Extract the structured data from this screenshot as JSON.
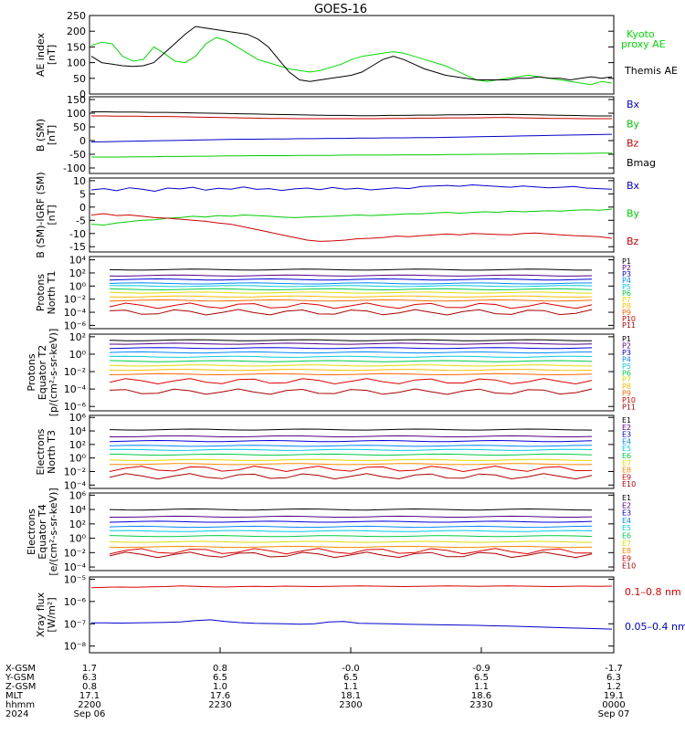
{
  "title": "GOES-16",
  "panels": [
    {
      "id": "ae",
      "ylabel": [
        "AE index",
        "[nT]"
      ],
      "ticks": [
        "250",
        "200",
        "150",
        "100",
        "50",
        "0"
      ],
      "ylim": [
        0,
        250
      ],
      "scale": "linear",
      "legend": [
        {
          "text": "Kyoto",
          "color": "#00dd00"
        },
        {
          "text": "proxy AE",
          "color": "#00dd00"
        },
        {
          "text": "Themis AE",
          "color": "#000000"
        }
      ],
      "series": [
        {
          "legend_ref": 0,
          "color": "#00dd00",
          "values": [
            155,
            165,
            160,
            120,
            105,
            110,
            150,
            130,
            105,
            100,
            120,
            160,
            180,
            170,
            150,
            130,
            110,
            100,
            90,
            80,
            75,
            70,
            75,
            85,
            95,
            110,
            120,
            125,
            130,
            135,
            130,
            120,
            110,
            100,
            90,
            75,
            60,
            45,
            40,
            45,
            50,
            55,
            60,
            55,
            50,
            45,
            40,
            35,
            30,
            40,
            35
          ]
        },
        {
          "legend_ref": 2,
          "color": "#000000",
          "values": [
            120,
            100,
            95,
            90,
            88,
            90,
            100,
            130,
            160,
            190,
            215,
            210,
            205,
            200,
            195,
            190,
            175,
            150,
            110,
            70,
            45,
            40,
            45,
            50,
            55,
            60,
            70,
            90,
            110,
            120,
            110,
            95,
            80,
            70,
            60,
            55,
            50,
            45,
            45,
            45,
            45,
            50,
            50,
            55,
            50,
            50,
            45,
            50,
            55,
            50,
            55
          ]
        }
      ]
    },
    {
      "id": "bsm",
      "ylabel": [
        "B (SM)",
        "[nT]"
      ],
      "ticks": [
        "150",
        "100",
        "50",
        "0",
        "-50",
        "-100"
      ],
      "ylim": [
        -120,
        160
      ],
      "scale": "linear",
      "legend": [
        {
          "text": "Bx",
          "color": "#0000cc"
        },
        {
          "text": "By",
          "color": "#00cc00"
        },
        {
          "text": "Bz",
          "color": "#cc0000"
        },
        {
          "text": "Bmag",
          "color": "#000000"
        }
      ],
      "series": [
        {
          "legend_ref": 3,
          "color": "#000000",
          "values": [
            105,
            105,
            104,
            104,
            103,
            103,
            102,
            101,
            100,
            99,
            98,
            97,
            96,
            95,
            94,
            93,
            92,
            92,
            91,
            91,
            92,
            92,
            93,
            93,
            94,
            94,
            95,
            95,
            96,
            95,
            94,
            93,
            92,
            91,
            90,
            90
          ]
        },
        {
          "legend_ref": 2,
          "color": "#cc0000",
          "values": [
            90,
            90,
            89,
            89,
            88,
            88,
            87,
            86,
            85,
            84,
            83,
            82,
            81,
            81,
            80,
            80,
            80,
            80,
            80,
            80,
            81,
            81,
            82,
            82,
            83,
            83,
            83,
            84,
            84,
            83,
            82,
            81,
            81,
            80,
            80,
            80
          ]
        },
        {
          "legend_ref": 0,
          "color": "#0000cc",
          "values": [
            -5,
            -4,
            -3,
            -2,
            -1,
            0,
            1,
            2,
            3,
            4,
            5,
            5,
            6,
            6,
            7,
            7,
            8,
            8,
            9,
            9,
            10,
            10,
            11,
            11,
            12,
            13,
            14,
            15,
            16,
            17,
            18,
            19,
            20,
            21,
            22,
            23
          ]
        },
        {
          "legend_ref": 1,
          "color": "#00cc00",
          "values": [
            -60,
            -60,
            -60,
            -59,
            -59,
            -58,
            -58,
            -57,
            -57,
            -56,
            -56,
            -55,
            -55,
            -55,
            -54,
            -54,
            -54,
            -53,
            -53,
            -53,
            -53,
            -52,
            -52,
            -52,
            -51,
            -51,
            -50,
            -50,
            -49,
            -49,
            -48,
            -48,
            -47,
            -47,
            -46,
            -46
          ]
        }
      ]
    },
    {
      "id": "bigrf",
      "ylabel": [
        "B (SM)-IGRF (SM)",
        "[nT]"
      ],
      "ticks": [
        "10",
        "5",
        "0",
        "-5",
        "-10",
        "-15"
      ],
      "ylim": [
        -17,
        11
      ],
      "scale": "linear",
      "legend": [
        {
          "text": "Bx",
          "color": "#0000cc"
        },
        {
          "text": "By",
          "color": "#00cc00"
        },
        {
          "text": "Bz",
          "color": "#cc0000"
        }
      ],
      "series": [
        {
          "legend_ref": 0,
          "color": "#0000cc",
          "values": [
            6.5,
            7.0,
            6.2,
            7.3,
            6.8,
            6.0,
            7.2,
            6.9,
            7.5,
            6.4,
            7.1,
            6.8,
            7.6,
            6.7,
            7.0,
            6.3,
            6.9,
            7.2,
            6.6,
            7.4,
            6.8,
            7.1,
            6.5,
            6.9,
            7.3,
            7.0,
            7.8,
            8.0,
            8.2,
            7.9,
            8.4,
            8.1,
            7.8,
            7.5,
            8.0,
            7.6,
            7.3,
            7.5,
            7.8,
            7.2,
            7.0,
            6.8
          ]
        },
        {
          "legend_ref": 1,
          "color": "#00cc00",
          "values": [
            -6.5,
            -6.8,
            -6.0,
            -5.5,
            -5.0,
            -4.8,
            -4.2,
            -4.0,
            -3.5,
            -3.8,
            -3.2,
            -3.5,
            -3.0,
            -3.2,
            -3.5,
            -3.8,
            -4.0,
            -3.8,
            -3.6,
            -3.5,
            -3.2,
            -3.0,
            -3.2,
            -3.0,
            -2.8,
            -2.5,
            -2.6,
            -2.2,
            -2.0,
            -2.3,
            -2.0,
            -1.8,
            -2.0,
            -1.5,
            -1.8,
            -1.6,
            -1.4,
            -1.5,
            -1.2,
            -1.0,
            -1.2,
            -0.8
          ]
        },
        {
          "legend_ref": 2,
          "color": "#cc0000",
          "values": [
            -3.0,
            -2.5,
            -3.2,
            -3.0,
            -3.5,
            -4.0,
            -4.2,
            -4.6,
            -5.0,
            -5.4,
            -6.0,
            -6.5,
            -7.5,
            -8.5,
            -9.5,
            -10.5,
            -11.5,
            -12.5,
            -13.0,
            -12.8,
            -12.5,
            -12.0,
            -11.8,
            -11.5,
            -11.0,
            -11.2,
            -10.8,
            -10.5,
            -10.2,
            -10.5,
            -10.0,
            -10.2,
            -10.4,
            -10.5,
            -10.0,
            -9.8,
            -10.2,
            -10.5,
            -10.8,
            -11.0,
            -11.2,
            -11.8
          ]
        }
      ]
    },
    {
      "id": "protons_t1",
      "ylabel": [
        "Protons",
        "North T1"
      ],
      "ticks": [
        "10⁴",
        "10²",
        "10⁰",
        "10⁻²",
        "10⁻⁴",
        "10⁻⁶"
      ],
      "ylim_log": [
        -6.5,
        4.5
      ],
      "scale": "log",
      "legend": [
        {
          "text": "P1",
          "color": "#000000"
        },
        {
          "text": "P2",
          "color": "#550088"
        },
        {
          "text": "P3",
          "color": "#0000dd"
        },
        {
          "text": "P4",
          "color": "#0088ff"
        },
        {
          "text": "P5",
          "color": "#00ccdd"
        },
        {
          "text": "P6",
          "color": "#00cc44"
        },
        {
          "text": "P7",
          "color": "#dddd00"
        },
        {
          "text": "P8",
          "color": "#ffbb00"
        },
        {
          "text": "P9",
          "color": "#ff6600"
        },
        {
          "text": "P10",
          "color": "#dd0000"
        },
        {
          "text": "P11",
          "color": "#aa0000"
        }
      ],
      "levels": [
        2.5,
        1.6,
        1.0,
        0.4,
        0.0,
        -0.5,
        -1.0,
        -1.6,
        -2.2,
        -3.0,
        -4.0
      ]
    },
    {
      "id": "protons_t2",
      "ylabel": [
        "Protons",
        "Equator T2",
        "[p/(cm²-s-sr-keV)]"
      ],
      "ticks": [
        "10²",
        "10⁰",
        "10⁻²",
        "10⁻⁴",
        "10⁻⁶"
      ],
      "ylim_log": [
        -6.5,
        2.3
      ],
      "scale": "log",
      "legend": [
        {
          "text": "P1",
          "color": "#000000"
        },
        {
          "text": "P2",
          "color": "#550088"
        },
        {
          "text": "P3",
          "color": "#0000dd"
        },
        {
          "text": "P4",
          "color": "#0088ff"
        },
        {
          "text": "P5",
          "color": "#00ccdd"
        },
        {
          "text": "P6",
          "color": "#00cc44"
        },
        {
          "text": "P7",
          "color": "#dddd00"
        },
        {
          "text": "P8",
          "color": "#ffbb00"
        },
        {
          "text": "P9",
          "color": "#ff6600"
        },
        {
          "text": "P10",
          "color": "#dd0000"
        },
        {
          "text": "P11",
          "color": "#aa0000"
        }
      ],
      "levels": [
        1.6,
        1.2,
        0.7,
        0.2,
        -0.3,
        -0.8,
        -1.3,
        -1.8,
        -2.3,
        -3.1,
        -4.3
      ]
    },
    {
      "id": "electrons_t3",
      "ylabel": [
        "Electrons",
        "North T3"
      ],
      "ticks": [
        "10⁶",
        "10⁴",
        "10²",
        "10⁰",
        "10⁻²",
        "10⁻⁴"
      ],
      "ylim_log": [
        -4.5,
        6.3
      ],
      "scale": "log",
      "legend": [
        {
          "text": "E1",
          "color": "#000000"
        },
        {
          "text": "E2",
          "color": "#550088"
        },
        {
          "text": "E3",
          "color": "#0000dd"
        },
        {
          "text": "E4",
          "color": "#0088ff"
        },
        {
          "text": "E5",
          "color": "#00ccdd"
        },
        {
          "text": "E6",
          "color": "#00cc44"
        },
        {
          "text": "E7",
          "color": "#dddd00"
        },
        {
          "text": "E8",
          "color": "#ff8800"
        },
        {
          "text": "E9",
          "color": "#dd0000"
        },
        {
          "text": "E10",
          "color": "#aa0000"
        }
      ],
      "levels": [
        4.2,
        3.2,
        2.5,
        1.8,
        1.2,
        0.5,
        -0.3,
        -0.9,
        -1.6,
        -2.7
      ]
    },
    {
      "id": "electrons_t4",
      "ylabel": [
        "Electrons",
        "Equator T4",
        "[e/(cm²-s-sr-keV)]"
      ],
      "ticks": [
        "10⁶",
        "10⁴",
        "10²",
        "10⁰",
        "10⁻²",
        "10⁻⁴"
      ],
      "ylim_log": [
        -4.5,
        6.3
      ],
      "scale": "log",
      "legend": [
        {
          "text": "E1",
          "color": "#000000"
        },
        {
          "text": "E2",
          "color": "#550088"
        },
        {
          "text": "E3",
          "color": "#0000dd"
        },
        {
          "text": "E4",
          "color": "#0088ff"
        },
        {
          "text": "E5",
          "color": "#00ccdd"
        },
        {
          "text": "E6",
          "color": "#00cc44"
        },
        {
          "text": "E7",
          "color": "#dddd00"
        },
        {
          "text": "E8",
          "color": "#ff8800"
        },
        {
          "text": "E9",
          "color": "#dd0000"
        },
        {
          "text": "E10",
          "color": "#aa0000"
        }
      ],
      "levels": [
        4.0,
        3.0,
        2.3,
        1.6,
        1.0,
        0.3,
        -0.5,
        -1.2,
        -1.8,
        -2.3
      ]
    },
    {
      "id": "xray",
      "ylabel": [
        "Xray flux",
        "[W/m²]"
      ],
      "ticks": [
        "10⁻⁵",
        "10⁻⁶",
        "10⁻⁷",
        "10⁻⁸"
      ],
      "ylim_log": [
        -8.3,
        -4.9
      ],
      "scale": "log",
      "legend": [
        {
          "text": "0.1–0.8 nm",
          "color": "#dd0000"
        },
        {
          "text": "0.05–0.4 nm",
          "color": "#0000cc"
        }
      ],
      "series": [
        {
          "legend_ref": 0,
          "color": "#dd0000",
          "values": [
            -5.38,
            -5.36,
            -5.35,
            -5.36,
            -5.34,
            -5.33,
            -5.3,
            -5.32,
            -5.34,
            -5.35,
            -5.33,
            -5.32,
            -5.33,
            -5.31,
            -5.32,
            -5.33,
            -5.32,
            -5.31,
            -5.3,
            -5.31,
            -5.32,
            -5.33,
            -5.32,
            -5.31,
            -5.3,
            -5.31,
            -5.32,
            -5.31,
            -5.3,
            -5.31,
            -5.32,
            -5.33,
            -5.32,
            -5.31,
            -5.32,
            -5.31
          ]
        },
        {
          "legend_ref": 1,
          "color": "#0000cc",
          "values": [
            -6.96,
            -6.96,
            -6.97,
            -6.96,
            -6.95,
            -6.94,
            -6.92,
            -6.86,
            -6.82,
            -6.9,
            -6.95,
            -6.98,
            -6.99,
            -7.0,
            -7.02,
            -7.0,
            -6.92,
            -6.9,
            -6.98,
            -6.99,
            -7.0,
            -7.02,
            -7.03,
            -7.04,
            -7.05,
            -7.06,
            -7.07,
            -7.09,
            -7.1,
            -7.12,
            -7.14,
            -7.16,
            -7.18,
            -7.2,
            -7.22,
            -7.24
          ]
        }
      ]
    }
  ],
  "footer": {
    "row_labels": [
      "X-GSM",
      "Y-GSM",
      "Z-GSM",
      "MLT",
      "hhmm",
      "2024"
    ],
    "columns": [
      [
        "1.7",
        "6.3",
        "0.8",
        "17.1",
        "2200",
        "Sep 06"
      ],
      [
        "0.8",
        "6.5",
        "1.0",
        "17.6",
        "2230",
        ""
      ],
      [
        "-0.0",
        "6.5",
        "1.1",
        "18.1",
        "2300",
        ""
      ],
      [
        "-0.9",
        "6.5",
        "1.1",
        "18.6",
        "2330",
        ""
      ],
      [
        "-1.7",
        "6.3",
        "1.2",
        "19.1",
        "0000",
        "Sep 07"
      ]
    ]
  }
}
